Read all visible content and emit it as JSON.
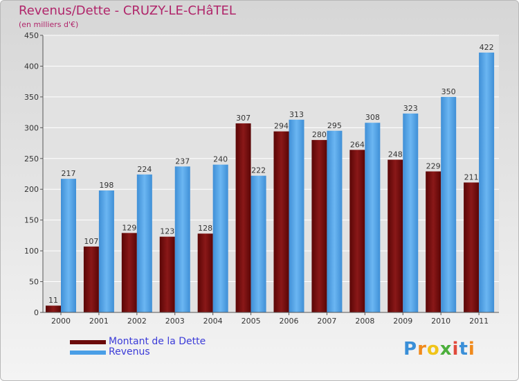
{
  "chart_data": {
    "type": "bar",
    "title": "Revenus/Dette - CRUZY-LE-CHâTEL",
    "subtitle": "(en milliers d'€)",
    "categories": [
      "2000",
      "2001",
      "2002",
      "2003",
      "2004",
      "2005",
      "2006",
      "2007",
      "2008",
      "2009",
      "2010",
      "2011"
    ],
    "series": [
      {
        "name": "Montant de la Dette",
        "color": "#7a0e0e",
        "values": [
          11,
          107,
          129,
          123,
          128,
          307,
          294,
          280,
          264,
          248,
          229,
          211
        ]
      },
      {
        "name": "Revenus",
        "color": "#4a9ee6",
        "values": [
          217,
          198,
          224,
          237,
          240,
          222,
          313,
          295,
          308,
          323,
          350,
          422
        ]
      }
    ],
    "ylim": [
      0,
      450
    ],
    "yticks": [
      0,
      50,
      100,
      150,
      200,
      250,
      300,
      350,
      400,
      450
    ],
    "grid": true,
    "legend_position": "bottom-left"
  },
  "logo": {
    "letters": [
      "P",
      "r",
      "o",
      "x",
      "i",
      "t",
      "i"
    ]
  }
}
